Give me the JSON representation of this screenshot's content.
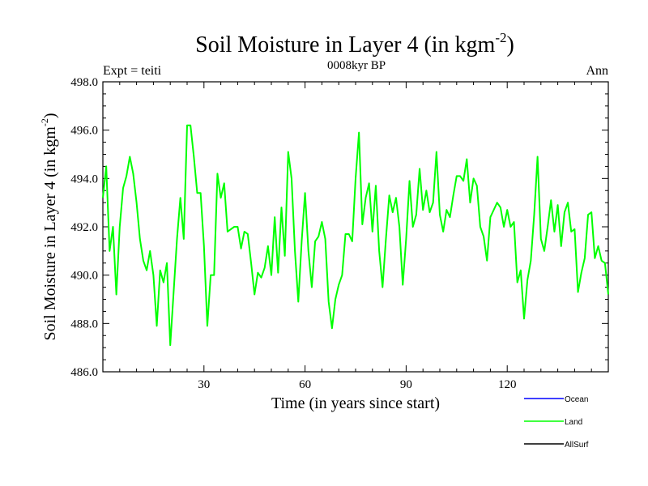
{
  "chart_data": {
    "type": "line",
    "title": "Soil Moisture in Layer 4 (in kgm",
    "title_exponent": "-2",
    "title_close": ")",
    "subtitle": "0008kyr BP",
    "left_label": "Expt = teiti",
    "right_label": "Ann",
    "xlabel": "Time (in years since start)",
    "ylabel": "Soil Moisture in Layer 4 (in kgm",
    "ylabel_exponent": "-2",
    "ylabel_close": ")",
    "xlim": [
      0,
      150
    ],
    "ylim": [
      486.0,
      498.0
    ],
    "x_ticks": [
      30,
      60,
      90,
      120
    ],
    "x_tick_labels": [
      "30",
      "60",
      "90",
      "120"
    ],
    "y_ticks": [
      486,
      488,
      490,
      492,
      494,
      496,
      498
    ],
    "y_tick_labels": [
      "486.0",
      "488.0",
      "490.0",
      "492.0",
      "494.0",
      "496.0",
      "498.0"
    ],
    "legend": {
      "position": "bottom-right",
      "entries": [
        {
          "name": "Ocean",
          "color": "#0000ff"
        },
        {
          "name": "Land",
          "color": "#00ff00"
        },
        {
          "name": "AllSurf",
          "color": "#000000"
        }
      ]
    },
    "series": [
      {
        "name": "Land",
        "color": "#00ff00",
        "x": [
          0,
          1,
          2,
          3,
          4,
          5,
          6,
          7,
          8,
          9,
          10,
          11,
          12,
          13,
          14,
          15,
          16,
          17,
          18,
          19,
          20,
          21,
          22,
          23,
          24,
          25,
          26,
          27,
          28,
          29,
          30,
          31,
          32,
          33,
          34,
          35,
          36,
          37,
          38,
          39,
          40,
          41,
          42,
          43,
          44,
          45,
          46,
          47,
          48,
          49,
          50,
          51,
          52,
          53,
          54,
          55,
          56,
          57,
          58,
          59,
          60,
          61,
          62,
          63,
          64,
          65,
          66,
          67,
          68,
          69,
          70,
          71,
          72,
          73,
          74,
          75,
          76,
          77,
          78,
          79,
          80,
          81,
          82,
          83,
          84,
          85,
          86,
          87,
          88,
          89,
          90,
          91,
          92,
          93,
          94,
          95,
          96,
          97,
          98,
          99,
          100,
          101,
          102,
          103,
          104,
          105,
          106,
          107,
          108,
          109,
          110,
          111,
          112,
          113,
          114,
          115,
          116,
          117,
          118,
          119,
          120,
          121,
          122,
          123,
          124,
          125,
          126,
          127,
          128,
          129,
          130,
          131,
          132,
          133,
          134,
          135,
          136,
          137,
          138,
          139,
          140,
          141,
          142,
          143,
          144,
          145,
          146,
          147,
          148,
          149,
          150
        ],
        "values": [
          493.2,
          494.5,
          491.0,
          492.0,
          489.2,
          492.0,
          493.6,
          494.1,
          494.9,
          494.2,
          493.0,
          491.5,
          490.6,
          490.2,
          491.0,
          490.0,
          487.9,
          490.2,
          489.7,
          490.5,
          487.1,
          489.3,
          491.5,
          493.2,
          491.5,
          496.2,
          496.2,
          494.9,
          493.4,
          493.4,
          491.2,
          487.9,
          490.0,
          490.0,
          494.2,
          493.2,
          493.8,
          491.8,
          491.9,
          492.0,
          492.0,
          491.1,
          491.8,
          491.7,
          490.5,
          489.2,
          490.1,
          489.9,
          490.3,
          491.2,
          490.0,
          492.4,
          490.1,
          492.8,
          490.8,
          495.1,
          494.0,
          491.0,
          488.9,
          491.4,
          493.4,
          491.0,
          489.5,
          491.4,
          491.6,
          492.2,
          491.5,
          488.9,
          487.8,
          489.0,
          489.6,
          490.0,
          491.7,
          491.7,
          491.4,
          494.0,
          495.9,
          492.1,
          493.2,
          493.8,
          491.8,
          493.7,
          491.0,
          489.5,
          491.5,
          493.3,
          492.6,
          493.2,
          492.0,
          489.6,
          491.5,
          493.9,
          492.0,
          492.5,
          494.4,
          492.7,
          493.5,
          492.6,
          493.0,
          495.1,
          492.5,
          491.8,
          492.7,
          492.4,
          493.3,
          494.1,
          494.1,
          493.9,
          494.8,
          493.0,
          494.0,
          493.7,
          492.0,
          491.6,
          490.6,
          492.4,
          492.7,
          493.0,
          492.8,
          492.0,
          492.7,
          492.0,
          492.2,
          489.7,
          490.2,
          488.2,
          489.8,
          490.6,
          492.5,
          494.9,
          491.5,
          491.0,
          492.0,
          493.1,
          491.8,
          492.9,
          491.2,
          492.6,
          493.0,
          491.8,
          491.9,
          489.3,
          490.1,
          490.7,
          492.5,
          492.6,
          490.7,
          491.2,
          490.6,
          490.5,
          489.2
        ]
      }
    ]
  }
}
